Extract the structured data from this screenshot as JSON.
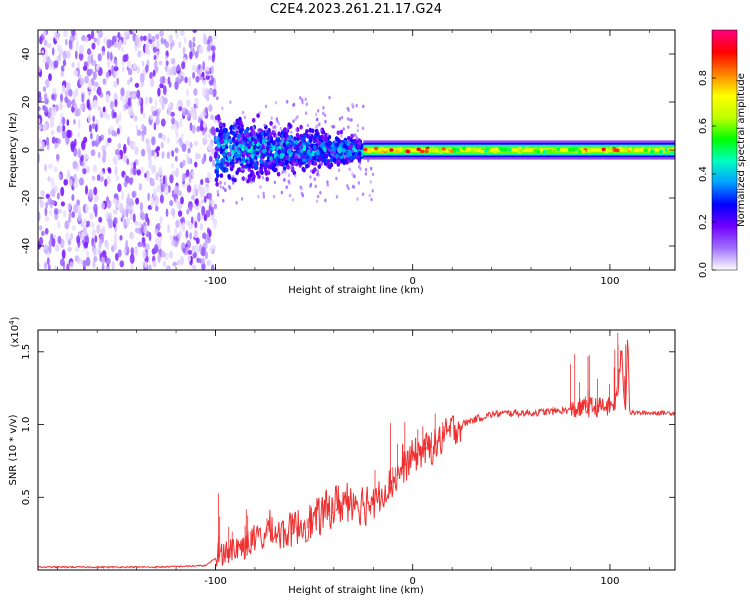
{
  "title": "C2E4.2023.261.21.17.G24",
  "chart_data": [
    {
      "type": "heatmap",
      "xlabel": "Height of straight line (km)",
      "ylabel": "Frequency (Hz)",
      "xlim": [
        -190,
        133
      ],
      "ylim": [
        -50,
        50
      ],
      "xticks": [
        -100,
        0,
        100
      ],
      "yticks": [
        -40,
        -20,
        0,
        20,
        40
      ],
      "grid": false,
      "colorbar": {
        "label": "Normalized spectral amplitude",
        "range": [
          0,
          1
        ],
        "ticks": [
          0.0,
          0.2,
          0.4,
          0.6,
          0.8
        ],
        "colors": [
          "#ffffff",
          "#a070ff",
          "#7000ff",
          "#0000ff",
          "#00a0ff",
          "#00ffc0",
          "#00ff00",
          "#c0ff00",
          "#ffff00",
          "#ff8000",
          "#ff0000",
          "#ff0080"
        ]
      },
      "regions": [
        {
          "x_range": [
            -190,
            -100
          ],
          "f_range": [
            -50,
            50
          ],
          "amplitude": [
            0.02,
            0.18
          ],
          "description_kind": "noise"
        },
        {
          "x_range": [
            -100,
            -25
          ],
          "f_center": 0,
          "f_spread": [
            10,
            3
          ],
          "amplitude": [
            0.15,
            0.5
          ]
        },
        {
          "x_range": [
            -25,
            133
          ],
          "f_center": 0,
          "f_halfwidth": 3,
          "peak_amplitude": 0.95
        }
      ]
    },
    {
      "type": "line",
      "xlabel": "Height of straight line (km)",
      "ylabel": "SNR (10 * v/v)",
      "y_multiplier": "(x10",
      "y_multiplier_exp": "4",
      "y_multiplier_close": ")",
      "xlim": [
        -190,
        133
      ],
      "ylim": [
        0,
        1.65
      ],
      "xticks": [
        -100,
        0,
        100
      ],
      "yticks": [
        0.5,
        1.0,
        1.5
      ],
      "ytick_labels": [
        "0.5",
        "1.0",
        "1.5"
      ],
      "color": "#ee3030",
      "grid": false,
      "x": [
        -190,
        -160,
        -130,
        -105,
        -100,
        -95,
        -90,
        -85,
        -80,
        -75,
        -72,
        -70,
        -65,
        -60,
        -55,
        -50,
        -45,
        -40,
        -35,
        -30,
        -25,
        -20,
        -15,
        -10,
        -5,
        0,
        5,
        10,
        15,
        20,
        25,
        30,
        35,
        40,
        50,
        60,
        70,
        80,
        90,
        100,
        103,
        105,
        106,
        107,
        108,
        109,
        110,
        112,
        120,
        133
      ],
      "y": [
        0.02,
        0.02,
        0.02,
        0.03,
        0.08,
        0.1,
        0.12,
        0.14,
        0.18,
        0.2,
        0.28,
        0.22,
        0.22,
        0.25,
        0.28,
        0.3,
        0.35,
        0.4,
        0.42,
        0.45,
        0.4,
        0.45,
        0.55,
        0.6,
        0.7,
        0.78,
        0.82,
        0.84,
        0.9,
        0.97,
        1.0,
        1.03,
        1.05,
        1.07,
        1.08,
        1.08,
        1.09,
        1.1,
        1.12,
        1.12,
        1.15,
        1.35,
        1.55,
        1.2,
        1.1,
        1.65,
        1.08,
        1.08,
        1.08,
        1.08
      ],
      "spikes": [
        {
          "x_range": [
            -100,
            -20
          ],
          "max": [
            0.35,
            0.55
          ]
        },
        {
          "x_range": [
            -20,
            20
          ],
          "max": [
            0.95,
            1.15
          ]
        },
        {
          "x_range": [
            80,
            108
          ],
          "max": [
            1.3,
            1.65
          ]
        }
      ]
    }
  ]
}
